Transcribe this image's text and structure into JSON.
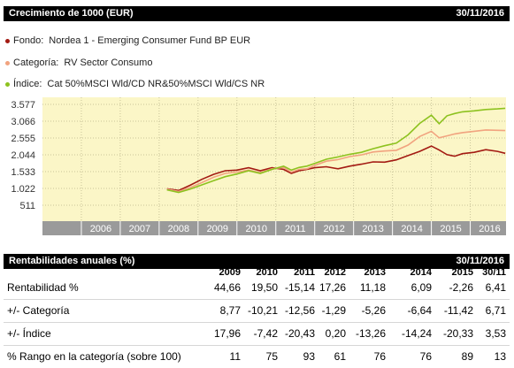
{
  "growth": {
    "title": "Crecimiento de 1000 (EUR)",
    "date": "30/11/2016"
  },
  "legend": [
    {
      "key": "Fondo:",
      "value": "Nordea 1 - Emerging Consumer Fund BP EUR",
      "color": "#a31a12"
    },
    {
      "key": "Categoría:",
      "value": "RV Sector Consumo",
      "color": "#f1a37f"
    },
    {
      "key": "Índice:",
      "value": "Cat 50%MSCI Wld/CD NR&50%MSCI Wld/CS NR",
      "color": "#8dc21f"
    }
  ],
  "chart_data": {
    "type": "line",
    "y_ticks": [
      "3.577",
      "3.066",
      "2.555",
      "2.044",
      "1.533",
      "1.022",
      "511"
    ],
    "ylim": [
      511,
      3577
    ],
    "x_ticks": [
      "2006",
      "2007",
      "2008",
      "2009",
      "2010",
      "2011",
      "2012",
      "2013",
      "2014",
      "2015",
      "2016"
    ],
    "xlim": [
      2005.0,
      2016.92
    ],
    "plot_bg": "#fbf6c7",
    "grid": true,
    "series": [
      {
        "name": "Fondo",
        "color": "#a31a12",
        "points": [
          [
            2008.2,
            1010
          ],
          [
            2008.5,
            960
          ],
          [
            2008.8,
            1120
          ],
          [
            2009.1,
            1300
          ],
          [
            2009.4,
            1450
          ],
          [
            2009.7,
            1560
          ],
          [
            2010.0,
            1580
          ],
          [
            2010.3,
            1650
          ],
          [
            2010.6,
            1560
          ],
          [
            2010.9,
            1650
          ],
          [
            2011.2,
            1600
          ],
          [
            2011.4,
            1480
          ],
          [
            2011.6,
            1560
          ],
          [
            2011.8,
            1600
          ],
          [
            2012.0,
            1650
          ],
          [
            2012.3,
            1680
          ],
          [
            2012.6,
            1620
          ],
          [
            2012.9,
            1700
          ],
          [
            2013.2,
            1760
          ],
          [
            2013.5,
            1830
          ],
          [
            2013.8,
            1820
          ],
          [
            2014.1,
            1890
          ],
          [
            2014.4,
            2020
          ],
          [
            2014.7,
            2150
          ],
          [
            2015.0,
            2310
          ],
          [
            2015.2,
            2190
          ],
          [
            2015.4,
            2050
          ],
          [
            2015.6,
            2000
          ],
          [
            2015.8,
            2080
          ],
          [
            2016.1,
            2120
          ],
          [
            2016.4,
            2200
          ],
          [
            2016.7,
            2150
          ],
          [
            2016.9,
            2090
          ]
        ]
      },
      {
        "name": "Categoría",
        "color": "#f1a37f",
        "points": [
          [
            2008.2,
            1000
          ],
          [
            2008.5,
            930
          ],
          [
            2008.8,
            1050
          ],
          [
            2009.1,
            1200
          ],
          [
            2009.4,
            1360
          ],
          [
            2009.7,
            1480
          ],
          [
            2010.0,
            1520
          ],
          [
            2010.3,
            1580
          ],
          [
            2010.6,
            1500
          ],
          [
            2010.9,
            1620
          ],
          [
            2011.2,
            1660
          ],
          [
            2011.4,
            1520
          ],
          [
            2011.6,
            1600
          ],
          [
            2011.8,
            1620
          ],
          [
            2012.0,
            1720
          ],
          [
            2012.3,
            1850
          ],
          [
            2012.6,
            1900
          ],
          [
            2012.9,
            1990
          ],
          [
            2013.2,
            2040
          ],
          [
            2013.5,
            2130
          ],
          [
            2013.8,
            2160
          ],
          [
            2014.1,
            2180
          ],
          [
            2014.4,
            2340
          ],
          [
            2014.7,
            2600
          ],
          [
            2015.0,
            2760
          ],
          [
            2015.2,
            2560
          ],
          [
            2015.4,
            2620
          ],
          [
            2015.6,
            2680
          ],
          [
            2015.8,
            2720
          ],
          [
            2016.1,
            2760
          ],
          [
            2016.4,
            2800
          ],
          [
            2016.7,
            2790
          ],
          [
            2016.9,
            2780
          ]
        ]
      },
      {
        "name": "Índice",
        "color": "#8dc21f",
        "points": [
          [
            2008.2,
            980
          ],
          [
            2008.5,
            900
          ],
          [
            2008.8,
            1000
          ],
          [
            2009.1,
            1130
          ],
          [
            2009.4,
            1260
          ],
          [
            2009.7,
            1380
          ],
          [
            2010.0,
            1460
          ],
          [
            2010.3,
            1560
          ],
          [
            2010.6,
            1480
          ],
          [
            2010.9,
            1600
          ],
          [
            2011.2,
            1700
          ],
          [
            2011.4,
            1580
          ],
          [
            2011.6,
            1660
          ],
          [
            2011.8,
            1700
          ],
          [
            2012.0,
            1780
          ],
          [
            2012.3,
            1910
          ],
          [
            2012.6,
            1980
          ],
          [
            2012.9,
            2060
          ],
          [
            2013.2,
            2120
          ],
          [
            2013.5,
            2230
          ],
          [
            2013.8,
            2320
          ],
          [
            2014.1,
            2400
          ],
          [
            2014.4,
            2650
          ],
          [
            2014.7,
            3000
          ],
          [
            2015.0,
            3250
          ],
          [
            2015.2,
            2990
          ],
          [
            2015.4,
            3230
          ],
          [
            2015.6,
            3300
          ],
          [
            2015.8,
            3350
          ],
          [
            2016.1,
            3380
          ],
          [
            2016.4,
            3420
          ],
          [
            2016.7,
            3440
          ],
          [
            2016.9,
            3460
          ]
        ]
      }
    ]
  },
  "returns": {
    "title": "Rentabilidades anuales (%)",
    "date": "30/11/2016",
    "years": [
      "2009",
      "2010",
      "2011",
      "2012",
      "2013",
      "2014",
      "2015",
      "30/11"
    ],
    "rows": [
      {
        "label": "Rentabilidad %",
        "values": [
          "44,66",
          "19,50",
          "-15,14",
          "17,26",
          "11,18",
          "6,09",
          "-2,26",
          "6,41"
        ]
      },
      {
        "label": "+/- Categoría",
        "values": [
          "8,77",
          "-10,21",
          "-12,56",
          "-1,29",
          "-5,26",
          "-6,64",
          "-11,42",
          "6,71"
        ]
      },
      {
        "label": "+/- Índice",
        "values": [
          "17,96",
          "-7,42",
          "-20,43",
          "0,20",
          "-13,26",
          "-14,24",
          "-20,33",
          "3,53"
        ]
      },
      {
        "label": "% Rango en la categoría (sobre 100)",
        "values": [
          "11",
          "75",
          "93",
          "61",
          "76",
          "76",
          "89",
          "13"
        ]
      }
    ]
  }
}
